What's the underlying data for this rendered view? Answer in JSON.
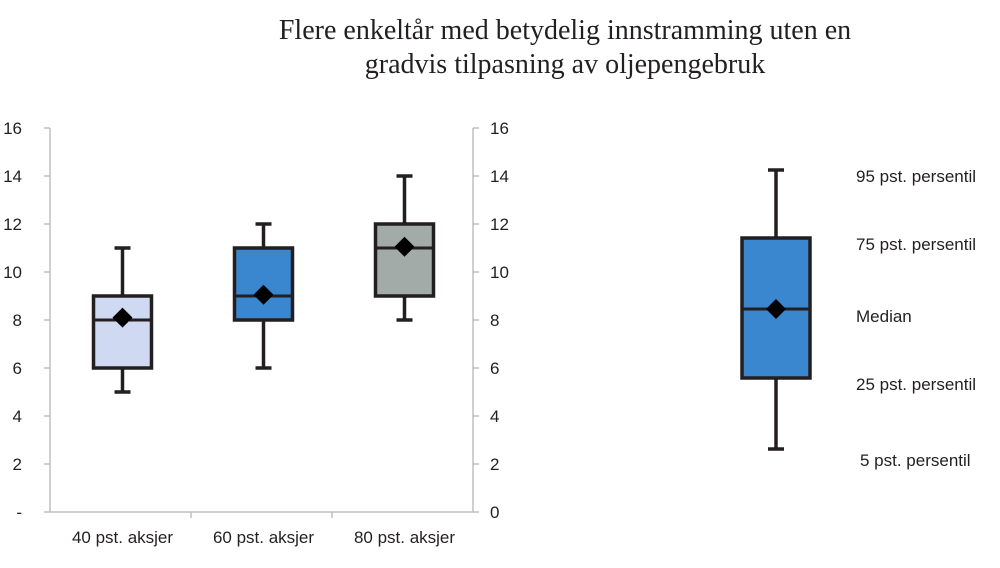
{
  "chart_data": {
    "type": "boxplot",
    "title_lines": [
      "Flere enkeltår med betydelig innstramming uten en",
      "gradvis tilpasning av oljepengebruk"
    ],
    "xlabel": "",
    "ylabel": "",
    "ylim": [
      0,
      16
    ],
    "left_tick_labels": [
      "-",
      "2",
      "4",
      "6",
      "8",
      "10",
      "12",
      "14",
      "16"
    ],
    "right_tick_labels": [
      "0",
      "2",
      "4",
      "6",
      "8",
      "10",
      "12",
      "14",
      "16"
    ],
    "tick_values": [
      0,
      2,
      4,
      6,
      8,
      10,
      12,
      14,
      16
    ],
    "grid": false,
    "boxes": [
      {
        "category": "40 pst. aksjer",
        "p5": 5,
        "p25": 6,
        "median": 8,
        "mean": 8.1,
        "p75": 9,
        "p95": 11,
        "color": "#cfd9f1"
      },
      {
        "category": "60 pst. aksjer",
        "p5": 6,
        "p25": 8,
        "median": 9,
        "mean": 9.05,
        "p75": 11,
        "p95": 12,
        "color": "#3a87cf"
      },
      {
        "category": "80 pst. aksjer",
        "p5": 8,
        "p25": 9,
        "median": 11,
        "mean": 11.05,
        "p75": 12,
        "p95": 14,
        "color": "#a2aba8"
      }
    ],
    "legend": {
      "color": "#3a87cf",
      "labels": {
        "p95": "95 pst. persentil",
        "p75": "75 pst. persentil",
        "median": "Median",
        "p25": "25 pst. persentil",
        "p5": "5 pst. persentil"
      }
    },
    "colors": {
      "axis": "#bfbfbf",
      "stroke": "#231f20",
      "mean_marker": "#000000"
    }
  }
}
